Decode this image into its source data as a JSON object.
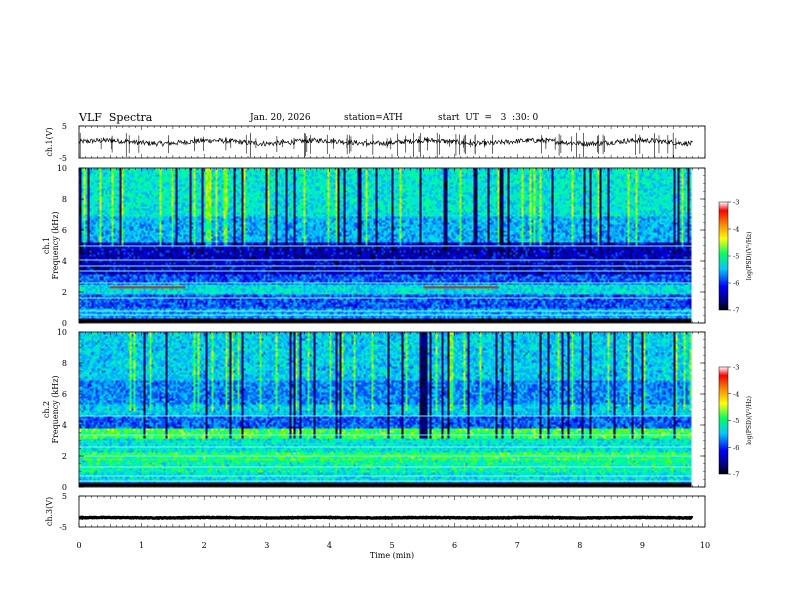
{
  "header": {
    "title": "VLF  Spectra",
    "date": "Jan. 20, 2026",
    "station": "station=ATH",
    "start_ut": "start  UT  =   3  :30: 0"
  },
  "chart_data": [
    {
      "type": "line",
      "panel": "ch1-waveform",
      "ylabel": "ch.1(V)",
      "ylim": [
        -5,
        5
      ],
      "yticks": [
        "5",
        "-5"
      ],
      "xlim": [
        0,
        10
      ],
      "data_extent_min": 9.8,
      "baseline_v": 0,
      "color": "#000000"
    },
    {
      "type": "heatmap",
      "panel": "ch1-spectrogram",
      "ylabel_line1": "ch.1",
      "ylabel_line2": "Frequency  (kHz)",
      "ylim": [
        0,
        10
      ],
      "yticks": [
        "0",
        "2",
        "4",
        "6",
        "8",
        "10"
      ],
      "xlim": [
        0,
        10
      ],
      "data_extent_min": 9.8,
      "colorbar_label": "log(PSD)(V²/Hz)",
      "colorbar_range": [
        -7,
        -3
      ],
      "colorbar_ticks": [
        "-3",
        "-4",
        "-5",
        "-6",
        "-7"
      ],
      "markers": [
        {
          "t0": 0.5,
          "t1": 1.7,
          "f": 2.3
        },
        {
          "t0": 5.5,
          "t1": 6.7,
          "f": 2.3
        }
      ]
    },
    {
      "type": "heatmap",
      "panel": "ch2-spectrogram",
      "ylabel_line1": "ch.2",
      "ylabel_line2": "Frequency  (kHz)",
      "ylim": [
        0,
        10
      ],
      "yticks": [
        "0",
        "2",
        "4",
        "6",
        "8",
        "10"
      ],
      "xlim": [
        0,
        10
      ],
      "data_extent_min": 9.8,
      "colorbar_label": "log(PSD)(V²/Hz)",
      "colorbar_range": [
        -7,
        -3
      ],
      "colorbar_ticks": [
        "-3",
        "-4",
        "-5",
        "-6",
        "-7"
      ]
    },
    {
      "type": "line",
      "panel": "ch3-waveform",
      "ylabel": "ch.3(V)",
      "ylim": [
        -5,
        5
      ],
      "yticks": [
        "5",
        "-5"
      ],
      "xlim": [
        0,
        10
      ],
      "xticks": [
        "0",
        "1",
        "2",
        "3",
        "4",
        "5",
        "6",
        "7",
        "8",
        "9",
        "10"
      ],
      "xlabel": "Time  (min)",
      "data_extent_min": 9.8,
      "baseline_v": -2,
      "color": "#000000"
    }
  ]
}
